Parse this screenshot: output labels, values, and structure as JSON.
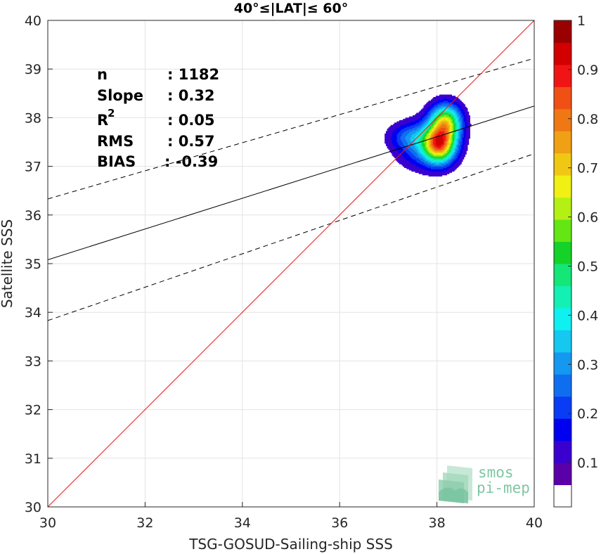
{
  "chart_data": {
    "type": "contour",
    "title": "40°≤|LAT|≤ 60°",
    "xlabel": "TSG-GOSUD-Sailing-ship SSS",
    "ylabel": "Satellite SSS",
    "xlim": [
      30,
      40
    ],
    "ylim": [
      30,
      40
    ],
    "xticks": [
      "30",
      "32",
      "34",
      "36",
      "38",
      "40"
    ],
    "yticks": [
      "30",
      "31",
      "32",
      "33",
      "34",
      "35",
      "36",
      "37",
      "38",
      "39",
      "40"
    ],
    "grid": true,
    "stats": [
      {
        "label": "n",
        "value": ": 1182"
      },
      {
        "label": "Slope",
        "value": ": 0.32"
      },
      {
        "label": "R",
        "sup": "2",
        "value": ": 0.05"
      },
      {
        "label": "RMS",
        "value": ": 0.57"
      },
      {
        "label": "BIAS",
        "value": ": -0.39"
      }
    ],
    "lines": {
      "identity": {
        "x": [
          30,
          40
        ],
        "y": [
          30,
          40
        ],
        "color": "#e8191c"
      },
      "fit": {
        "x": [
          30,
          40
        ],
        "y": [
          35.08,
          38.24
        ],
        "color": "#000000"
      },
      "fit_upper": {
        "x": [
          30,
          40
        ],
        "y": [
          36.33,
          39.22
        ],
        "color": "#000000",
        "dash": true
      },
      "fit_lower": {
        "x": [
          30,
          40
        ],
        "y": [
          33.83,
          37.26
        ],
        "color": "#000000",
        "dash": true
      }
    },
    "density_peak": {
      "x": 38.05,
      "y": 37.45
    },
    "contour_levels": [
      0.05,
      0.1,
      0.15,
      0.2,
      0.25,
      0.3,
      0.35,
      0.4,
      0.45,
      0.5,
      0.55,
      0.6,
      0.65,
      0.7,
      0.75,
      0.8,
      0.85,
      0.9,
      0.95
    ],
    "colorbar": {
      "ticks": [
        "0.1",
        "0.2",
        "0.3",
        "0.4",
        "0.5",
        "0.6",
        "0.7",
        "0.8",
        "0.9",
        "1"
      ],
      "tick_values": [
        0.1,
        0.2,
        0.3,
        0.4,
        0.5,
        0.6,
        0.7,
        0.8,
        0.9,
        1.0
      ],
      "colors": [
        "#ffffff",
        "#5a00a8",
        "#3a00d0",
        "#0000f0",
        "#0a3cf5",
        "#0f6ef0",
        "#1498f0",
        "#14c8f0",
        "#0ff0f0",
        "#14f0b4",
        "#14e678",
        "#14d228",
        "#64e614",
        "#b4f014",
        "#f0f014",
        "#f0c814",
        "#f0a014",
        "#f07814",
        "#f05014",
        "#f01414",
        "#d20000",
        "#9b0000"
      ]
    },
    "logo": {
      "line1": "smos",
      "line2": "pi-mep"
    }
  }
}
